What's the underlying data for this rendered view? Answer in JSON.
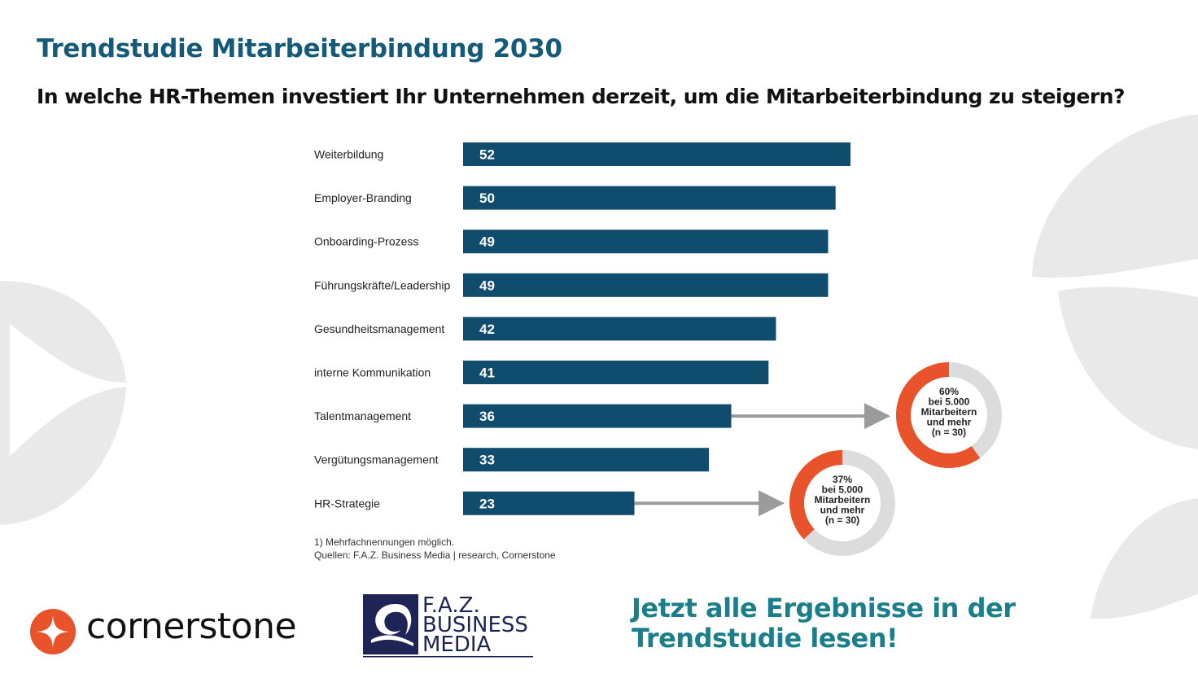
{
  "header": {
    "title": "Trendstudie Mitarbeiterbindung 2030",
    "question": "In welche HR-Themen investiert Ihr Unternehmen derzeit, um die Mitarbeiterbindung zu steigern?"
  },
  "chart_data": {
    "type": "bar",
    "orientation": "horizontal",
    "title": "In welche HR-Themen investiert Ihr Unternehmen derzeit, um die Mitarbeiterbindung zu steigern?",
    "categories": [
      "Weiterbildung",
      "Employer-Branding",
      "Onboarding-Prozess",
      "Führungskräfte/Leadership",
      "Gesundheitsmanagement",
      "interne Kommunikation",
      "Talentmanagement",
      "Vergütungsmanagement",
      "HR-Strategie"
    ],
    "values": [
      52,
      50,
      49,
      49,
      42,
      41,
      36,
      33,
      23
    ],
    "xlim": [
      0,
      60
    ],
    "bar_color": "#0f4c6e",
    "label_color": "#ffffff",
    "callouts": [
      {
        "category": "Talentmanagement",
        "percent": 60,
        "label": "60%",
        "lines": [
          "bei 5.000",
          "Mitarbeitern",
          "und mehr",
          "(n = 30)"
        ]
      },
      {
        "category": "HR-Strategie",
        "percent": 37,
        "label": "37%",
        "lines": [
          "bei 5.000",
          "Mitarbeitern",
          "und mehr",
          "(n = 30)"
        ]
      }
    ],
    "donut_colors": {
      "highlight": "#e8532b",
      "rest": "#dcdcdc"
    },
    "arrow_color": "#9b9b9b"
  },
  "notes": {
    "line1": "1) Mehrfachnennungen möglich.",
    "line2": "Quellen: F.A.Z. Business Media | research, Cornerstone"
  },
  "logos": {
    "cornerstone": "cornerstone",
    "faz_line1": "F.A.Z.",
    "faz_line2": "BUSINESS",
    "faz_line3": "MEDIA"
  },
  "cta": {
    "line1": "Jetzt alle Ergebnisse in der",
    "line2": "Trendstudie lesen!"
  },
  "colors": {
    "title": "#155a78",
    "cta": "#1a7f8a",
    "cornerstone_orange": "#e8532b",
    "faz_navy": "#1e2455",
    "decor_gray": "#e9e9e9"
  }
}
